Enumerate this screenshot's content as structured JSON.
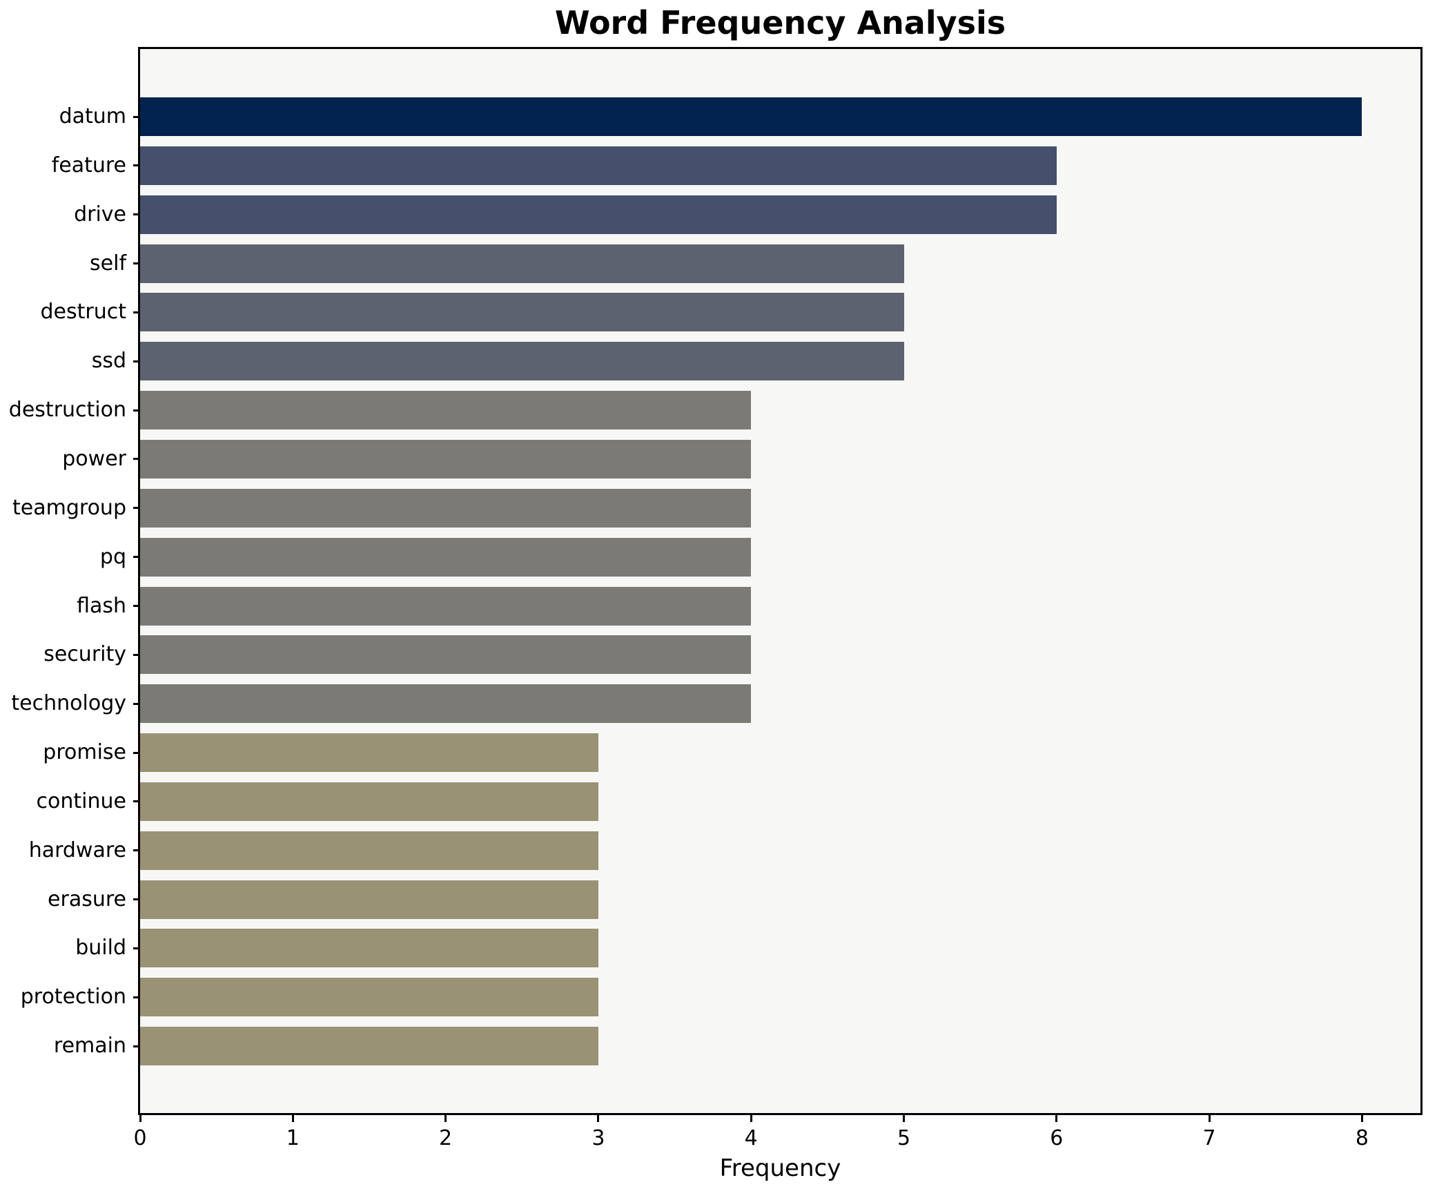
{
  "chart_data": {
    "type": "bar",
    "orientation": "horizontal",
    "title": "Word Frequency Analysis",
    "xlabel": "Frequency",
    "ylabel": "",
    "xlim": [
      0,
      8.38
    ],
    "grid": false,
    "legend": "none",
    "plot_background": "#f7f7f6",
    "figure_background": "#ffffff",
    "spine_color": "#000000",
    "x_ticks": [
      "0",
      "1",
      "2",
      "3",
      "4",
      "5",
      "6",
      "7",
      "8"
    ],
    "categories": [
      "datum",
      "feature",
      "drive",
      "self",
      "destruct",
      "ssd",
      "destruction",
      "power",
      "teamgroup",
      "pq",
      "flash",
      "security",
      "technology",
      "promise",
      "continue",
      "hardware",
      "erasure",
      "build",
      "protection",
      "remain"
    ],
    "values": [
      8,
      6,
      6,
      5,
      5,
      5,
      4,
      4,
      4,
      4,
      4,
      4,
      4,
      3,
      3,
      3,
      3,
      3,
      3,
      3
    ],
    "bar_colors": [
      "#02234e",
      "#45506c",
      "#45506c",
      "#5d6270",
      "#5d6270",
      "#5d6270",
      "#7b7a74",
      "#7b7a74",
      "#7b7a74",
      "#7b7a74",
      "#7b7a74",
      "#7b7a74",
      "#7b7a74",
      "#9a9274",
      "#9a9274",
      "#9a9274",
      "#9a9274",
      "#9a9274",
      "#9a9274",
      "#9a9274"
    ]
  }
}
